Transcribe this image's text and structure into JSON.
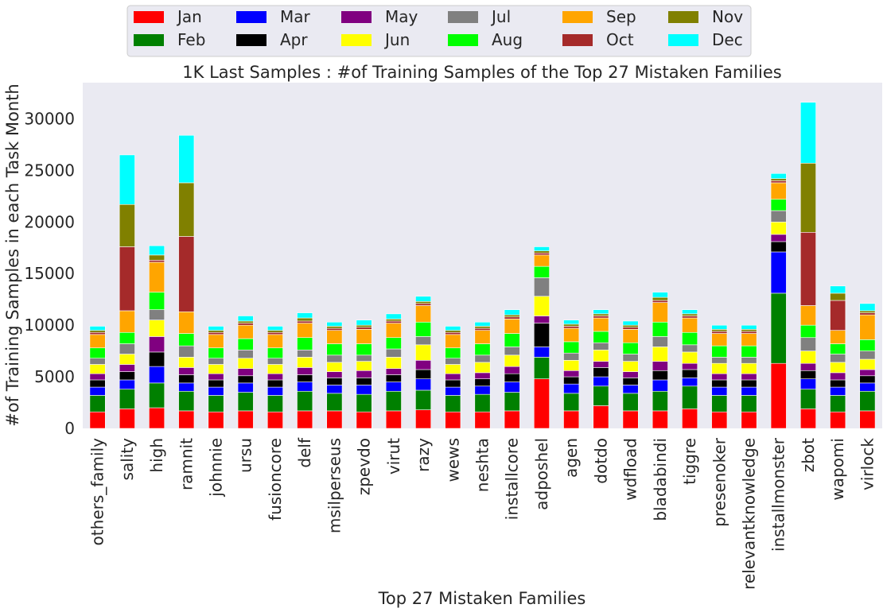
{
  "chart_data": {
    "type": "bar",
    "stacked": true,
    "title": "1K Last Samples : #of Training Samples of the Top 27 Mistaken Families",
    "xlabel": "Top 27 Mistaken Families",
    "ylabel": "#of Training Samples in each Task Month",
    "ylim": [
      0,
      33500
    ],
    "yticks": [
      0,
      5000,
      10000,
      15000,
      20000,
      25000,
      30000
    ],
    "ytick_labels": [
      "0",
      "5000",
      "10000",
      "15000",
      "20000",
      "25000",
      "30000"
    ],
    "grid": false,
    "legend_position": "top-center",
    "categories": [
      "others_family",
      "sality",
      "high",
      "ramnit",
      "johnnie",
      "ursu",
      "fusioncore",
      "delf",
      "msilperseus",
      "zpevdo",
      "virut",
      "razy",
      "wews",
      "neshta",
      "installcore",
      "adposhel",
      "agen",
      "dotdo",
      "wdfload",
      "bladabindi",
      "tiggre",
      "presenoker",
      "relevantknowledge",
      "installmonster",
      "zbot",
      "wapomi",
      "virlock"
    ],
    "series": [
      {
        "name": "Jan",
        "color": "#ff0000",
        "values": [
          1600,
          1900,
          2000,
          1700,
          1600,
          1700,
          1600,
          1700,
          1700,
          1600,
          1700,
          1800,
          1600,
          1600,
          1700,
          4800,
          1700,
          2200,
          1700,
          1700,
          1900,
          1600,
          1600,
          6300,
          1900,
          1600,
          1700
        ]
      },
      {
        "name": "Feb",
        "color": "#008000",
        "values": [
          1600,
          1900,
          2400,
          1900,
          1600,
          1800,
          1600,
          1900,
          1700,
          1700,
          1900,
          1900,
          1600,
          1700,
          1800,
          2100,
          1700,
          1900,
          1700,
          1900,
          2200,
          1600,
          1600,
          6800,
          1900,
          1600,
          1900
        ]
      },
      {
        "name": "Mar",
        "color": "#0000ff",
        "values": [
          800,
          900,
          1600,
          800,
          800,
          900,
          800,
          900,
          800,
          900,
          900,
          1100,
          800,
          800,
          1000,
          1000,
          900,
          900,
          800,
          1100,
          800,
          800,
          800,
          4000,
          1000,
          800,
          800
        ]
      },
      {
        "name": "Apr",
        "color": "#000000",
        "values": [
          700,
          800,
          1400,
          800,
          700,
          700,
          700,
          700,
          700,
          700,
          700,
          900,
          700,
          700,
          800,
          2300,
          700,
          900,
          700,
          900,
          800,
          700,
          700,
          1000,
          800,
          700,
          700
        ]
      },
      {
        "name": "May",
        "color": "#800080",
        "values": [
          600,
          700,
          1500,
          700,
          600,
          700,
          600,
          700,
          600,
          700,
          600,
          900,
          600,
          600,
          700,
          700,
          600,
          600,
          600,
          900,
          600,
          600,
          600,
          700,
          700,
          700,
          600
        ]
      },
      {
        "name": "Jun",
        "color": "#ffff00",
        "values": [
          900,
          1000,
          1600,
          1000,
          900,
          1000,
          900,
          1000,
          900,
          900,
          1100,
          1500,
          900,
          1000,
          1100,
          1900,
          1000,
          1100,
          1000,
          1400,
          1100,
          1000,
          1000,
          1200,
          1200,
          1000,
          1000
        ]
      },
      {
        "name": "Jul",
        "color": "#808080",
        "values": [
          600,
          1000,
          1000,
          1100,
          600,
          800,
          600,
          700,
          700,
          600,
          800,
          800,
          600,
          700,
          800,
          1800,
          700,
          700,
          700,
          1000,
          700,
          600,
          600,
          1100,
          1300,
          800,
          800
        ]
      },
      {
        "name": "Aug",
        "color": "#00ff00",
        "values": [
          1000,
          1100,
          1700,
          1200,
          1000,
          1100,
          1000,
          1200,
          1100,
          1100,
          1100,
          1400,
          1000,
          1100,
          1300,
          1100,
          1100,
          1100,
          1100,
          1400,
          1200,
          1100,
          1100,
          1100,
          1200,
          1000,
          1100
        ]
      },
      {
        "name": "Sep",
        "color": "#ffa500",
        "values": [
          1300,
          2100,
          2900,
          2100,
          1300,
          1300,
          1300,
          1400,
          1300,
          1400,
          1400,
          1600,
          1300,
          1300,
          1400,
          1100,
          1300,
          1300,
          1300,
          1900,
          1400,
          1200,
          1200,
          1600,
          1900,
          1300,
          2400
        ]
      },
      {
        "name": "Oct",
        "color": "#a52a2a",
        "values": [
          200,
          6200,
          200,
          7300,
          200,
          200,
          200,
          200,
          200,
          200,
          200,
          200,
          200,
          200,
          200,
          200,
          200,
          200,
          200,
          200,
          200,
          200,
          200,
          200,
          7100,
          2900,
          200
        ]
      },
      {
        "name": "Nov",
        "color": "#808000",
        "values": [
          200,
          4100,
          500,
          5200,
          200,
          200,
          200,
          300,
          200,
          200,
          200,
          200,
          200,
          200,
          200,
          200,
          200,
          200,
          200,
          300,
          200,
          200,
          200,
          200,
          6700,
          700,
          200
        ]
      },
      {
        "name": "Dec",
        "color": "#00ffff",
        "values": [
          400,
          4800,
          900,
          4600,
          400,
          500,
          400,
          500,
          400,
          500,
          500,
          500,
          400,
          400,
          500,
          400,
          400,
          400,
          400,
          500,
          400,
          400,
          400,
          500,
          5900,
          700,
          700
        ]
      }
    ]
  }
}
